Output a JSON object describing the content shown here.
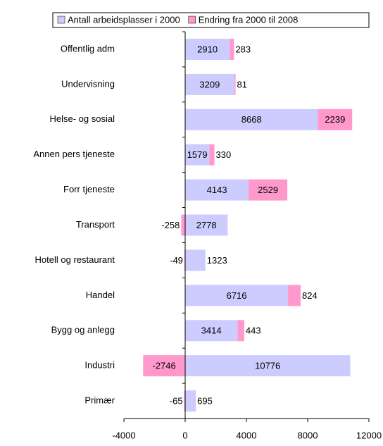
{
  "chart_data": {
    "type": "stacked_barh",
    "categories": [
      "Offentlig adm",
      "Undervisning",
      "Helse- og sosial",
      "Annen pers tjeneste",
      "Forr tjeneste",
      "Transport",
      "Hotell og restaurant",
      "Handel",
      "Bygg og anlegg",
      "Industri",
      "Primær"
    ],
    "series": [
      {
        "name": "Antall arbeidsplasser i 2000",
        "color": "#ccccff",
        "values": [
          2910,
          3209,
          8668,
          1579,
          4143,
          2778,
          1323,
          6716,
          3414,
          10776,
          695
        ]
      },
      {
        "name": "Endring fra 2000 til 2008",
        "color": "#ff99cc",
        "values": [
          283,
          81,
          2239,
          330,
          2529,
          -258,
          -49,
          824,
          443,
          -2746,
          -65
        ]
      }
    ],
    "xlim": [
      -4000,
      12000
    ],
    "xticks": [
      -4000,
      0,
      4000,
      8000,
      12000
    ],
    "legend": "top"
  }
}
